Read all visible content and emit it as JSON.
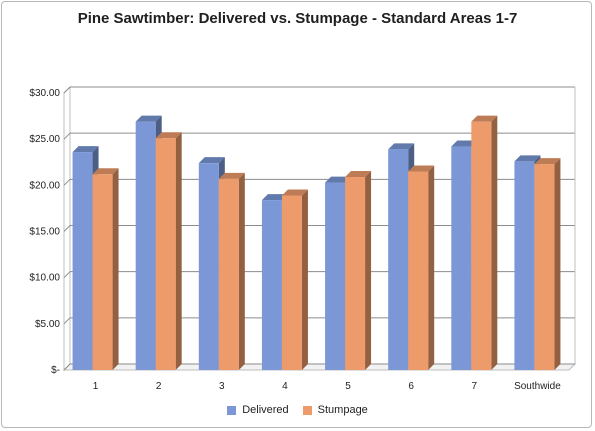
{
  "chart_data": {
    "type": "bar",
    "title": "Pine Sawtimber: Delivered vs. Stumpage - Standard Areas 1-7",
    "categories": [
      "1",
      "2",
      "3",
      "4",
      "5",
      "6",
      "7",
      "Southwide"
    ],
    "series": [
      {
        "name": "Delivered",
        "color": "#7b97d6",
        "values": [
          23.6,
          26.9,
          22.4,
          18.4,
          20.3,
          23.9,
          24.2,
          22.6
        ]
      },
      {
        "name": "Stumpage",
        "color": "#ee9b6b",
        "values": [
          21.2,
          25.1,
          20.7,
          18.9,
          20.9,
          21.5,
          26.9,
          22.3
        ]
      }
    ],
    "ylim": [
      0,
      30
    ],
    "yticks": [
      0,
      5,
      10,
      15,
      20,
      25,
      30
    ],
    "ytick_labels": [
      "$-",
      "$5.00",
      "$10.00",
      "$15.00",
      "$20.00",
      "$25.00",
      "$30.00"
    ],
    "grid": true,
    "legend_position": "bottom",
    "style": "3d-clustered-column"
  }
}
